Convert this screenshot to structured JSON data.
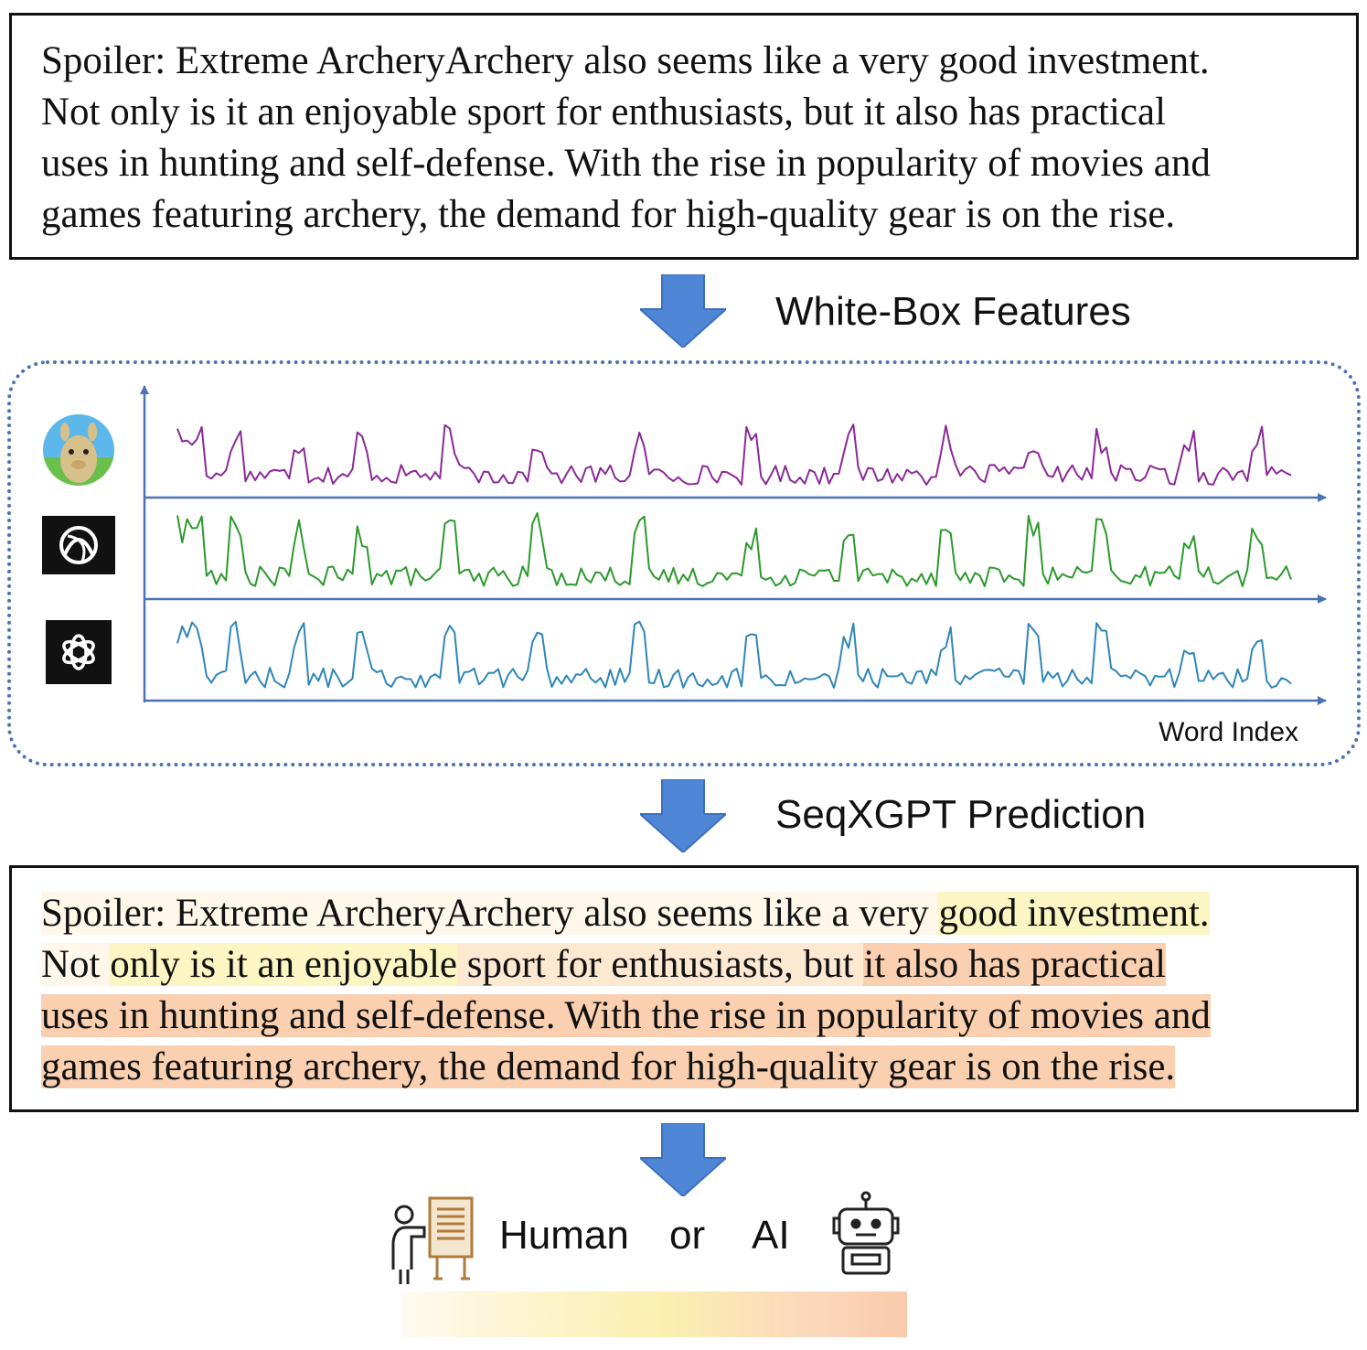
{
  "input_text": {
    "lines": [
      "Spoiler: Extreme ArcheryArchery also seems like a very good investment.",
      "Not only is it an enjoyable sport for enthusiasts, but it also has practical",
      "uses in hunting and self-defense. With the rise in popularity of movies and",
      "games featuring archery, the demand for high-quality gear is on the rise."
    ]
  },
  "step1_label": "White-Box Features",
  "step2_label": "SeqXGPT Prediction",
  "features": {
    "x_axis_label": "Word Index",
    "models": [
      {
        "icon": "llama-avatar-icon",
        "color": "#8a2a98"
      },
      {
        "icon": "ai-model-knot-icon",
        "color": "#2c9a2c"
      },
      {
        "icon": "openai-logo-icon",
        "color": "#2f86b8"
      }
    ]
  },
  "highlight_colors": {
    "none": "#ffffff",
    "cream": "#fff8ea",
    "yellow": "#fcf6c4",
    "peach": "#fde8d2",
    "orange": "#fbd0b0"
  },
  "output_text": {
    "lines": [
      [
        {
          "text": "Spoiler: Extreme ArcheryArchery also seems like a very ",
          "hl": "cream"
        },
        {
          "text": "good investment.",
          "hl": "yellow"
        }
      ],
      [
        {
          "text": "Not ",
          "hl": "cream"
        },
        {
          "text": "only is it an enjoyable",
          "hl": "yellow"
        },
        {
          "text": " sport for enthusiasts, but ",
          "hl": "peach"
        },
        {
          "text": "it also has practical",
          "hl": "orange"
        }
      ],
      [
        {
          "text": "uses in hunting and self-defense. With the rise in popularity of movies and",
          "hl": "orange"
        }
      ],
      [
        {
          "text": "games featuring archery, the demand for high-quality gear is on the rise.",
          "hl": "orange"
        }
      ]
    ]
  },
  "result": {
    "human_label": "Human",
    "or_label": "or",
    "ai_label": "AI",
    "human_icon": "human-presenter-icon",
    "ai_icon": "robot-icon"
  }
}
